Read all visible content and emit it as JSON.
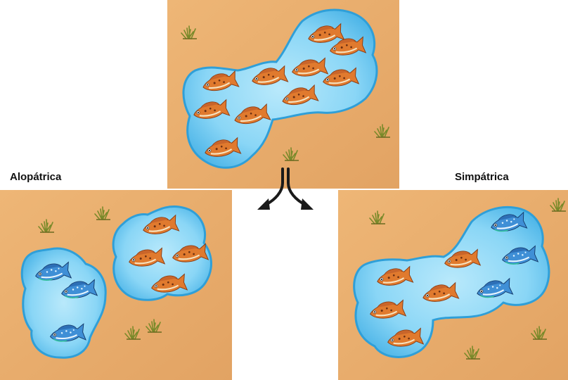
{
  "labels": {
    "allopatric": "Alopátrica",
    "sympatric": "Simpátrica"
  },
  "colors": {
    "ground": "#e8ae6b",
    "water": "#7fd0f4",
    "water_edge": "#2f9fd8",
    "fish_orange": "#e07a2e",
    "fish_blue": "#3f8fd6"
  },
  "icons": {
    "fish_orange": "orange-fish-icon",
    "fish_blue": "blue-fish-icon",
    "grass": "grass-tuft-icon",
    "arrow": "split-arrow-icon"
  }
}
